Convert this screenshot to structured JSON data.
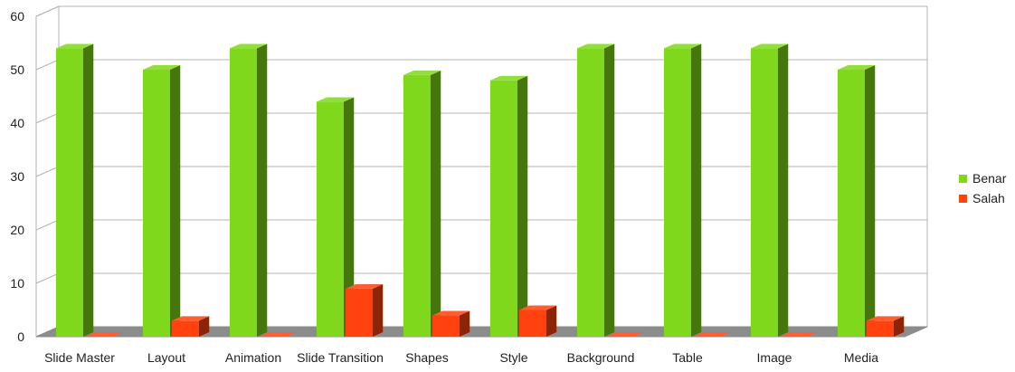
{
  "chart_data": {
    "type": "bar",
    "title": "",
    "xlabel": "",
    "ylabel": "",
    "ylim": [
      0,
      60
    ],
    "yticks": [
      0,
      10,
      20,
      30,
      40,
      50,
      60
    ],
    "grid": true,
    "legend_position": "right",
    "style": "3d",
    "categories": [
      "Slide Master",
      "Layout",
      "Animation",
      "Slide Transition",
      "Shapes",
      "Style",
      "Background",
      "Table",
      "Image",
      "Media"
    ],
    "series": [
      {
        "name": "Benar",
        "color": "#7FD81B",
        "values": [
          54,
          50,
          54,
          44,
          49,
          48,
          54,
          54,
          54,
          50
        ]
      },
      {
        "name": "Salah",
        "color": "#FF420E",
        "values": [
          0,
          3,
          0,
          9,
          4,
          5,
          0,
          0,
          0,
          3
        ]
      }
    ]
  }
}
